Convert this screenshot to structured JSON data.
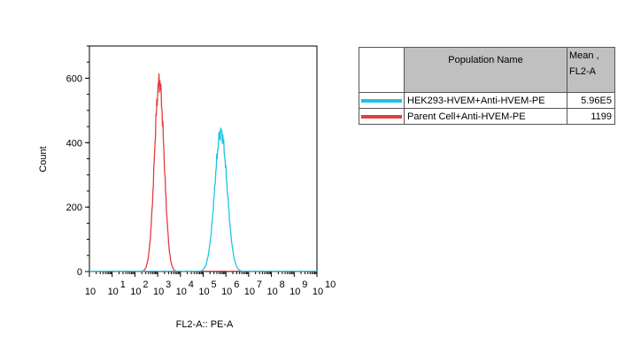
{
  "colors": {
    "hvem": "#1ec3e6",
    "parent": "#e63c3c"
  },
  "chart_data": {
    "type": "line",
    "xlabel": "FL2-A:: PE-A",
    "ylabel": "Count",
    "x_scale": "log",
    "xlim": [
      1,
      10000000000
    ],
    "ylim": [
      0,
      700
    ],
    "y_ticks": [
      "0",
      "200",
      "400",
      "600"
    ],
    "x_ticks": [
      {
        "base": "10",
        "exp": ""
      },
      {
        "base": "10",
        "exp": "1"
      },
      {
        "base": "10",
        "exp": "2"
      },
      {
        "base": "10",
        "exp": "3"
      },
      {
        "base": "10",
        "exp": "4"
      },
      {
        "base": "10",
        "exp": "5"
      },
      {
        "base": "10",
        "exp": "6"
      },
      {
        "base": "10",
        "exp": "7"
      },
      {
        "base": "10",
        "exp": "8"
      },
      {
        "base": "10",
        "exp": "9"
      },
      {
        "base": "10",
        "exp": "10"
      }
    ],
    "series": [
      {
        "name": "Parent Cell+Anti-HVEM-PE",
        "color": "#e63c3c",
        "peak_log10": 3.07,
        "peak_count": 590,
        "width_log10": 0.3
      },
      {
        "name": "HEK293-HVEM+Anti-HVEM-PE",
        "color": "#1ec3e6",
        "peak_log10": 5.78,
        "peak_count": 435,
        "width_log10": 0.38
      }
    ]
  },
  "legend": {
    "header_name": "Population Name",
    "header_stat_1": "Mean ,",
    "header_stat_2": "FL2-A",
    "rows": [
      {
        "name": "HEK293-HVEM+Anti-HVEM-PE",
        "mean": "5.96E5",
        "color": "#1ec3e6"
      },
      {
        "name": "Parent Cell+Anti-HVEM-PE",
        "mean": "1199",
        "color": "#e63c3c"
      }
    ]
  }
}
